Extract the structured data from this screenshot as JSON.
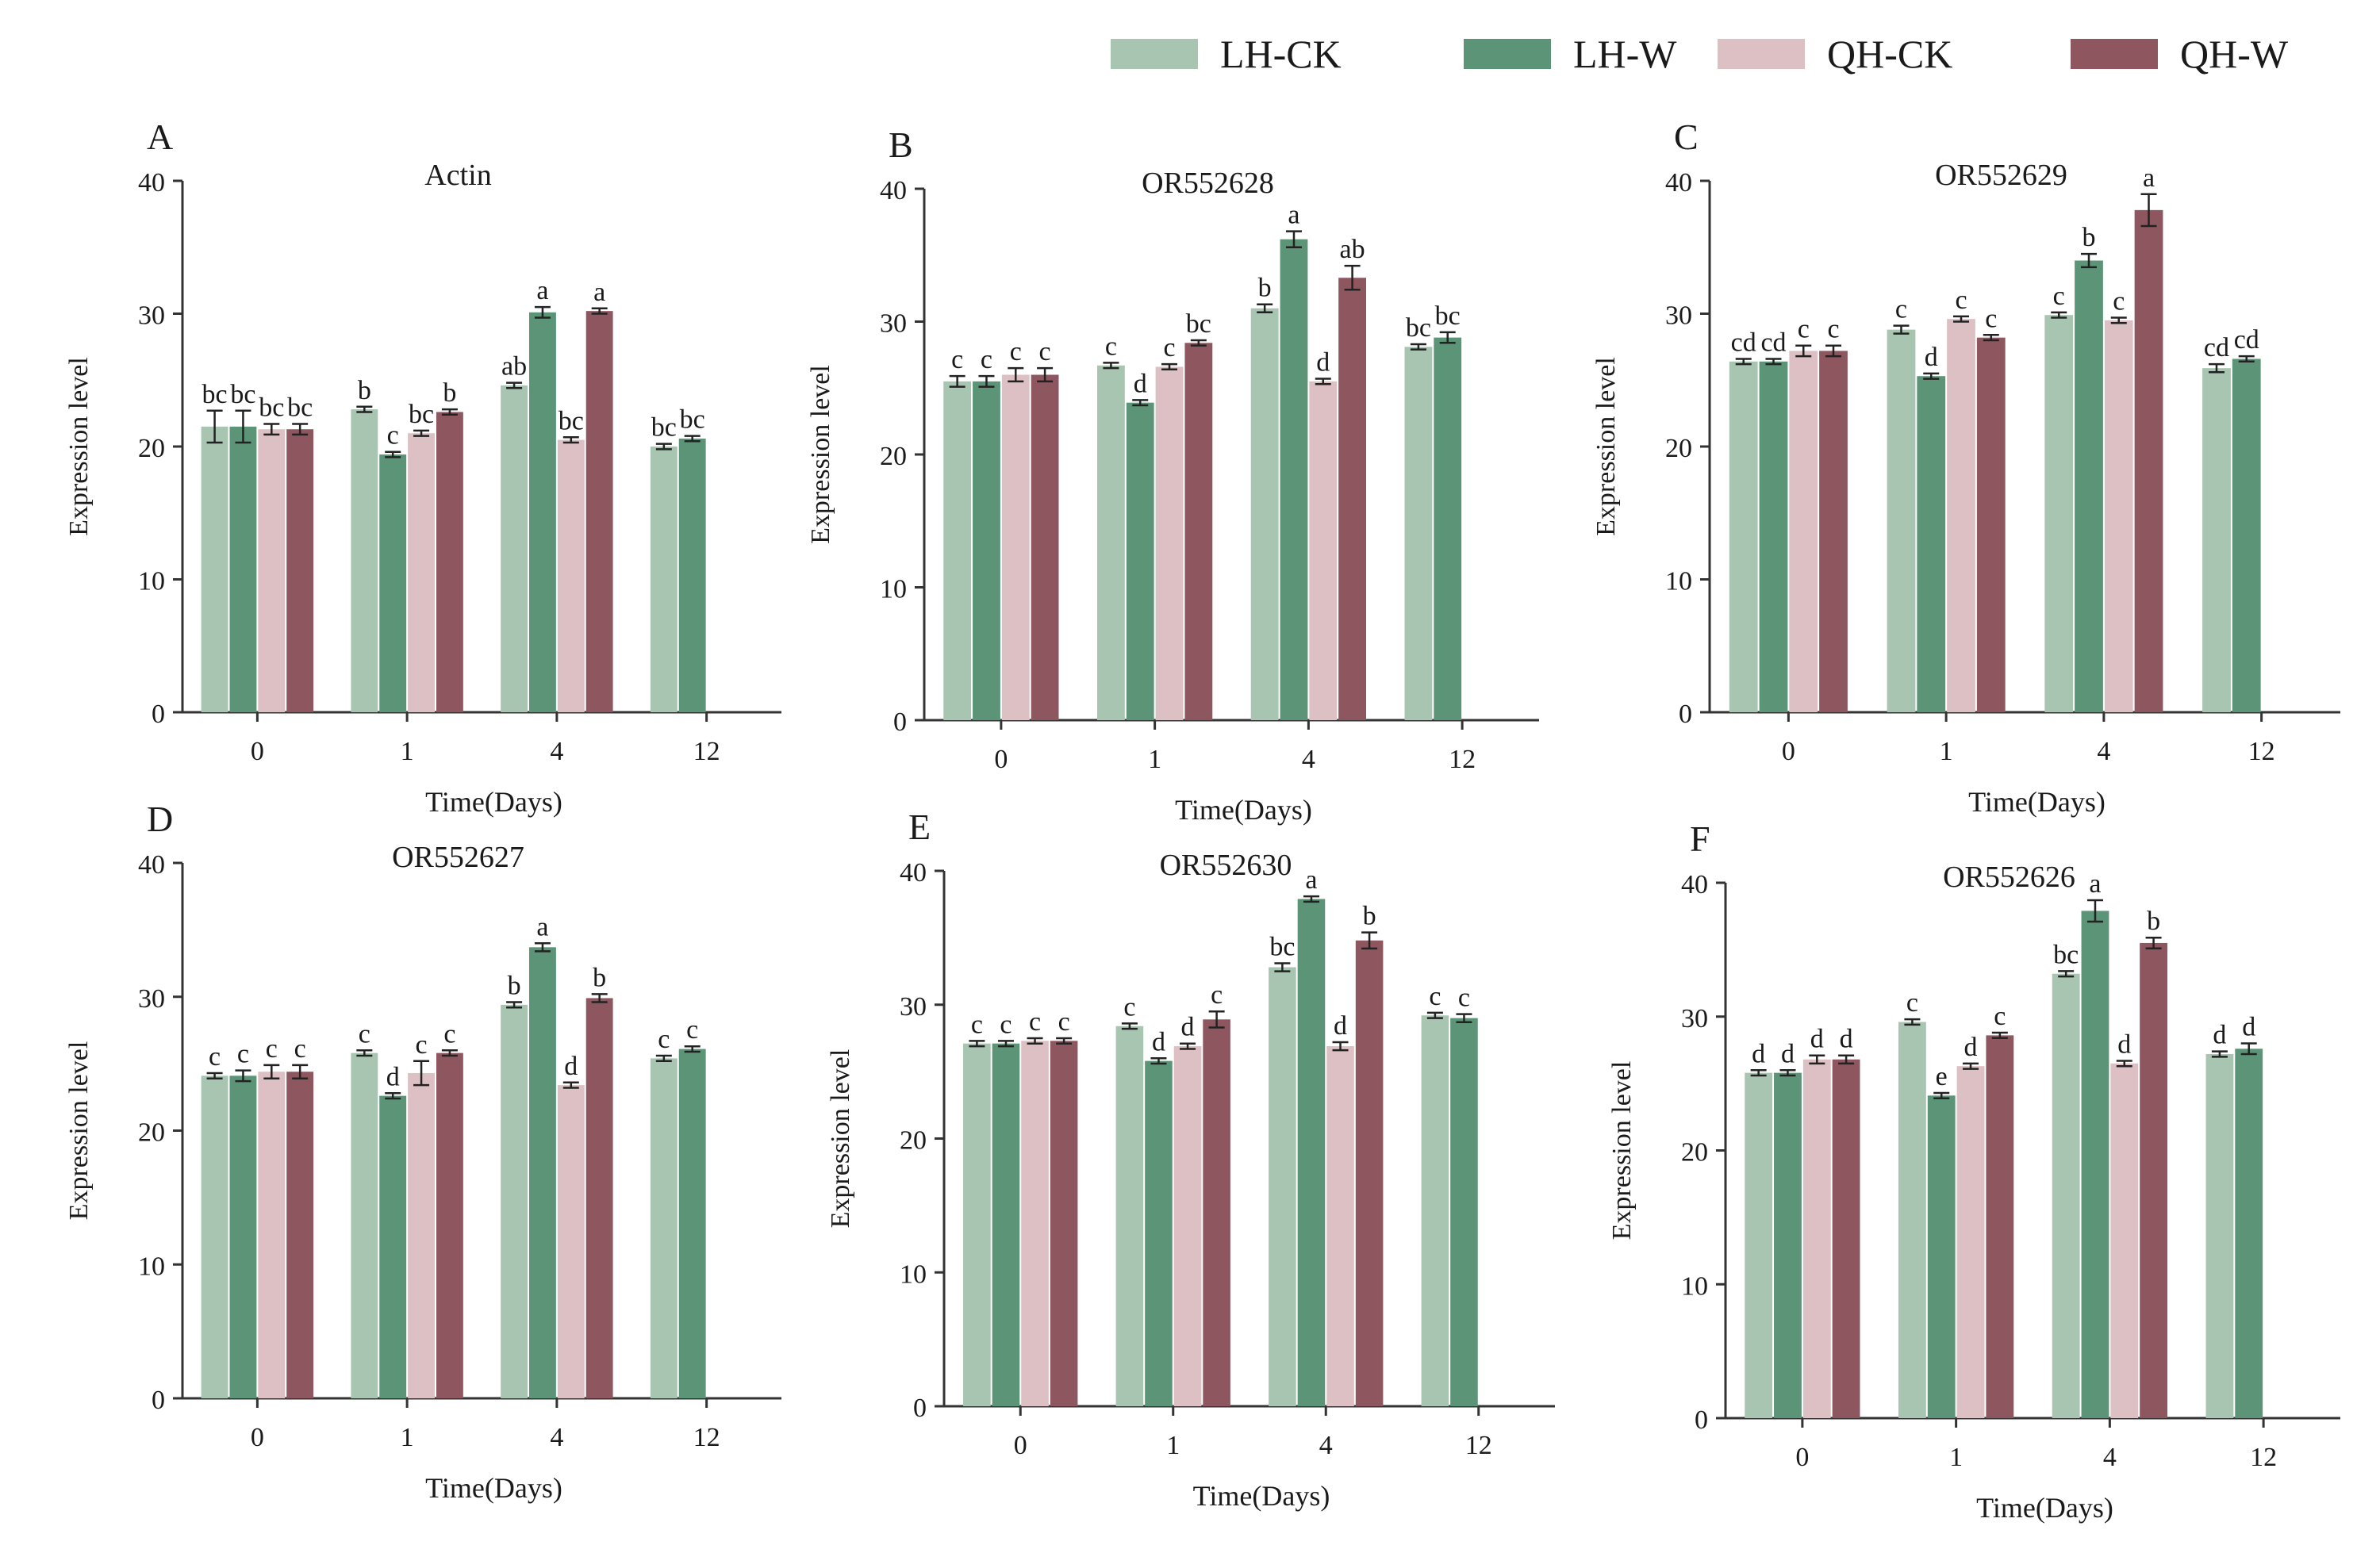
{
  "legend": {
    "items": [
      {
        "label": "LH-CK",
        "color": "#a8c5b1"
      },
      {
        "label": "LH-W",
        "color": "#5c9478"
      },
      {
        "label": "QH-CK",
        "color": "#dcc0c3"
      },
      {
        "label": "QH-W",
        "color": "#8e5760"
      }
    ]
  },
  "chart_data": [
    {
      "type": "bar",
      "panel": "A",
      "title": "Actin",
      "xlabel": "Time(Days)",
      "ylabel": "Expression level",
      "ylim": [
        0,
        40
      ],
      "yticks": [
        0,
        10,
        20,
        30,
        40
      ],
      "categories": [
        "0",
        "1",
        "4",
        "12"
      ],
      "series": [
        {
          "name": "LH-CK",
          "values": [
            21.5,
            22.8,
            24.6,
            20.0
          ],
          "errors": [
            1.2,
            0.2,
            0.2,
            0.2
          ],
          "letters": [
            "bc",
            "b",
            "ab",
            "bc"
          ]
        },
        {
          "name": "LH-W",
          "values": [
            21.5,
            19.4,
            30.1,
            20.6
          ],
          "errors": [
            1.2,
            0.2,
            0.4,
            0.2
          ],
          "letters": [
            "bc",
            "c",
            "a",
            "bc"
          ]
        },
        {
          "name": "QH-CK",
          "values": [
            21.3,
            21.0,
            20.5,
            null
          ],
          "errors": [
            0.4,
            0.2,
            0.2,
            null
          ],
          "letters": [
            "bc",
            "bc",
            "bc",
            null
          ]
        },
        {
          "name": "QH-W",
          "values": [
            21.3,
            22.6,
            30.2,
            null
          ],
          "errors": [
            0.4,
            0.2,
            0.2,
            null
          ],
          "letters": [
            "bc",
            "b",
            "a",
            null
          ]
        }
      ]
    },
    {
      "type": "bar",
      "panel": "B",
      "title": "OR552628",
      "xlabel": "Time(Days)",
      "ylabel": "Expression level",
      "ylim": [
        0,
        40
      ],
      "yticks": [
        0,
        10,
        20,
        30,
        40
      ],
      "categories": [
        "0",
        "1",
        "4",
        "12"
      ],
      "series": [
        {
          "name": "LH-CK",
          "values": [
            25.5,
            26.7,
            31.0,
            28.1
          ],
          "errors": [
            0.4,
            0.2,
            0.3,
            0.2
          ],
          "letters": [
            "c",
            "c",
            "b",
            "bc"
          ]
        },
        {
          "name": "LH-W",
          "values": [
            25.5,
            23.9,
            36.2,
            28.8
          ],
          "errors": [
            0.4,
            0.2,
            0.6,
            0.4
          ],
          "letters": [
            "c",
            "d",
            "a",
            "bc"
          ]
        },
        {
          "name": "QH-CK",
          "values": [
            26.0,
            26.6,
            25.5,
            null
          ],
          "errors": [
            0.5,
            0.2,
            0.2,
            null
          ],
          "letters": [
            "c",
            "c",
            "d",
            null
          ]
        },
        {
          "name": "QH-W",
          "values": [
            26.0,
            28.4,
            33.3,
            null
          ],
          "errors": [
            0.5,
            0.2,
            0.9,
            null
          ],
          "letters": [
            "c",
            "bc",
            "ab",
            null
          ]
        }
      ]
    },
    {
      "type": "bar",
      "panel": "C",
      "title": "OR552629",
      "xlabel": "Time(Days)",
      "ylabel": "Expression level",
      "ylim": [
        0,
        40
      ],
      "yticks": [
        0,
        10,
        20,
        30,
        40
      ],
      "categories": [
        "0",
        "1",
        "4",
        "12"
      ],
      "series": [
        {
          "name": "LH-CK",
          "values": [
            26.4,
            28.8,
            29.9,
            25.9
          ],
          "errors": [
            0.2,
            0.3,
            0.2,
            0.3
          ],
          "letters": [
            "cd",
            "c",
            "c",
            "cd"
          ]
        },
        {
          "name": "LH-W",
          "values": [
            26.4,
            25.3,
            34.0,
            26.6
          ],
          "errors": [
            0.2,
            0.2,
            0.5,
            0.2
          ],
          "letters": [
            "cd",
            "d",
            "b",
            "cd"
          ]
        },
        {
          "name": "QH-CK",
          "values": [
            27.2,
            29.6,
            29.5,
            null
          ],
          "errors": [
            0.4,
            0.2,
            0.2,
            null
          ],
          "letters": [
            "c",
            "c",
            "c",
            null
          ]
        },
        {
          "name": "QH-W",
          "values": [
            27.2,
            28.2,
            37.8,
            null
          ],
          "errors": [
            0.4,
            0.2,
            1.2,
            null
          ],
          "letters": [
            "c",
            "c",
            "a",
            null
          ]
        }
      ]
    },
    {
      "type": "bar",
      "panel": "D",
      "title": "OR552627",
      "xlabel": "Time(Days)",
      "ylabel": "Expression level",
      "ylim": [
        0,
        40
      ],
      "yticks": [
        0,
        10,
        20,
        30,
        40
      ],
      "categories": [
        "0",
        "1",
        "4",
        "12"
      ],
      "series": [
        {
          "name": "LH-CK",
          "values": [
            24.1,
            25.8,
            29.4,
            25.4
          ],
          "errors": [
            0.2,
            0.2,
            0.2,
            0.2
          ],
          "letters": [
            "c",
            "c",
            "b",
            "c"
          ]
        },
        {
          "name": "LH-W",
          "values": [
            24.1,
            22.6,
            33.7,
            26.1
          ],
          "errors": [
            0.4,
            0.2,
            0.3,
            0.2
          ],
          "letters": [
            "c",
            "d",
            "a",
            "c"
          ]
        },
        {
          "name": "QH-CK",
          "values": [
            24.4,
            24.3,
            23.4,
            null
          ],
          "errors": [
            0.5,
            0.9,
            0.2,
            null
          ],
          "letters": [
            "c",
            "c",
            "d",
            null
          ]
        },
        {
          "name": "QH-W",
          "values": [
            24.4,
            25.8,
            29.9,
            null
          ],
          "errors": [
            0.5,
            0.2,
            0.3,
            null
          ],
          "letters": [
            "c",
            "c",
            "b",
            null
          ]
        }
      ]
    },
    {
      "type": "bar",
      "panel": "E",
      "title": "OR552630",
      "xlabel": "Time(Days)",
      "ylabel": "Expression level",
      "ylim": [
        0,
        40
      ],
      "yticks": [
        0,
        10,
        20,
        30,
        40
      ],
      "categories": [
        "0",
        "1",
        "4",
        "12"
      ],
      "series": [
        {
          "name": "LH-CK",
          "values": [
            27.1,
            28.4,
            32.8,
            29.2
          ],
          "errors": [
            0.2,
            0.2,
            0.3,
            0.2
          ],
          "letters": [
            "c",
            "c",
            "bc",
            "c"
          ]
        },
        {
          "name": "LH-W",
          "values": [
            27.1,
            25.8,
            37.9,
            29.0
          ],
          "errors": [
            0.2,
            0.2,
            0.2,
            0.3
          ],
          "letters": [
            "c",
            "d",
            "a",
            "c"
          ]
        },
        {
          "name": "QH-CK",
          "values": [
            27.3,
            26.9,
            26.9,
            null
          ],
          "errors": [
            0.2,
            0.2,
            0.3,
            null
          ],
          "letters": [
            "c",
            "d",
            "d",
            null
          ]
        },
        {
          "name": "QH-W",
          "values": [
            27.3,
            28.9,
            34.8,
            null
          ],
          "errors": [
            0.2,
            0.6,
            0.6,
            null
          ],
          "letters": [
            "c",
            "c",
            "b",
            null
          ]
        }
      ]
    },
    {
      "type": "bar",
      "panel": "F",
      "title": "OR552626",
      "xlabel": "Time(Days)",
      "ylabel": "Expression level",
      "ylim": [
        0,
        40
      ],
      "yticks": [
        0,
        10,
        20,
        30,
        40
      ],
      "categories": [
        "0",
        "1",
        "4",
        "12"
      ],
      "series": [
        {
          "name": "LH-CK",
          "values": [
            25.8,
            29.6,
            33.2,
            27.2
          ],
          "errors": [
            0.2,
            0.2,
            0.2,
            0.2
          ],
          "letters": [
            "d",
            "c",
            "bc",
            "d"
          ]
        },
        {
          "name": "LH-W",
          "values": [
            25.8,
            24.1,
            37.9,
            27.6
          ],
          "errors": [
            0.2,
            0.2,
            0.8,
            0.4
          ],
          "letters": [
            "d",
            "e",
            "a",
            "d"
          ]
        },
        {
          "name": "QH-CK",
          "values": [
            26.8,
            26.3,
            26.5,
            null
          ],
          "errors": [
            0.3,
            0.2,
            0.2,
            null
          ],
          "letters": [
            "d",
            "d",
            "d",
            null
          ]
        },
        {
          "name": "QH-W",
          "values": [
            26.8,
            28.6,
            35.5,
            null
          ],
          "errors": [
            0.3,
            0.2,
            0.4,
            null
          ],
          "letters": [
            "d",
            "c",
            "b",
            null
          ]
        }
      ]
    }
  ]
}
